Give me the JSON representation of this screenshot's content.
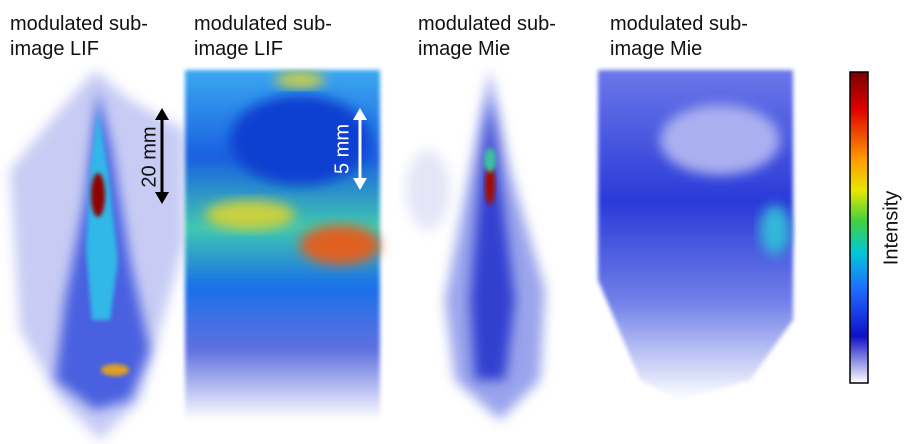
{
  "panels": [
    {
      "title": [
        "modulated sub-",
        "image LIF"
      ]
    },
    {
      "title": [
        "modulated sub-",
        "image LIF"
      ]
    },
    {
      "title": [
        "modulated sub-",
        "image Mie"
      ]
    },
    {
      "title": [
        "modulated sub-",
        "image Mie"
      ]
    }
  ],
  "scale_bars": [
    {
      "label": "20 mm"
    },
    {
      "label": "5 mm"
    }
  ],
  "colorbar": {
    "label": "Intensity"
  }
}
